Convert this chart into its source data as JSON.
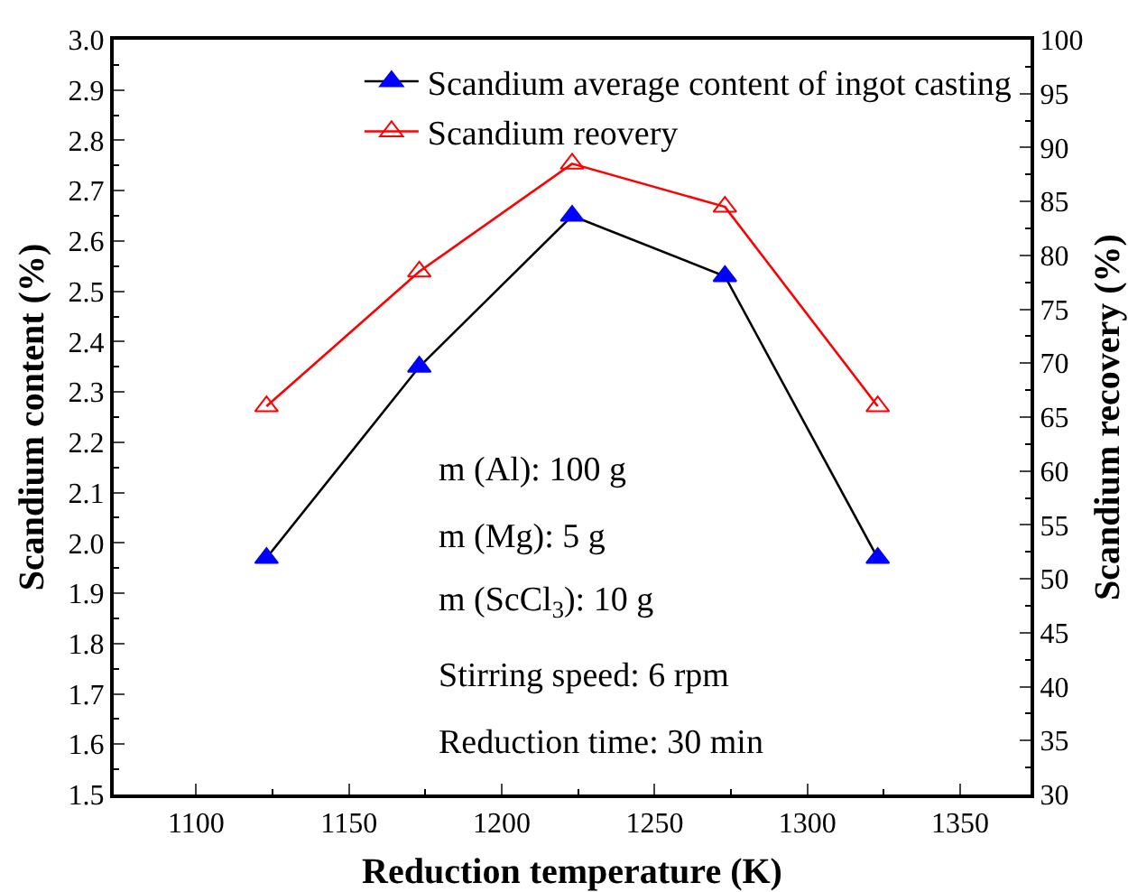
{
  "chart_data": {
    "type": "line",
    "xlabel": "Reduction temperature (K)",
    "ylabel": "Scandium content (%)",
    "y2label": "Scandium recovery (%)",
    "x": [
      1123,
      1173,
      1223,
      1273,
      1323
    ],
    "series": [
      {
        "name": "Scandium average content of ingot casting",
        "color": "#000000",
        "colors": [
          "#0000ff",
          "#0000ff",
          "#0000ff",
          "#0000ff",
          "#0000ff"
        ],
        "values": [
          1.97,
          2.35,
          2.65,
          2.53,
          1.97
        ]
      },
      {
        "name": "Scandium reovery",
        "color": "#ff0000",
        "axis": "y2",
        "values": [
          66,
          78.5,
          88.5,
          84.5,
          66
        ]
      }
    ],
    "xlim": [
      1073,
      1373
    ],
    "xticks": [
      1100,
      1150,
      1200,
      1250,
      1300,
      1350
    ],
    "ylim": [
      1.5,
      3.0
    ],
    "yticks": [
      {
        "value": 1.5,
        "label": "1.5"
      },
      {
        "value": 1.6,
        "label": "1.6"
      },
      {
        "value": 1.7,
        "label": "1.7"
      },
      {
        "value": 1.8,
        "label": "1.8"
      },
      {
        "value": 1.9,
        "label": "1.9"
      },
      {
        "value": 2.0,
        "label": "2.0"
      },
      {
        "value": 2.1,
        "label": "2.1"
      },
      {
        "value": 2.2,
        "label": "2.2"
      },
      {
        "value": 2.3,
        "label": "2.3"
      },
      {
        "value": 2.4,
        "label": "2.4"
      },
      {
        "value": 2.5,
        "label": "2.5"
      },
      {
        "value": 2.6,
        "label": "2.6"
      },
      {
        "value": 2.7,
        "label": "2.7"
      },
      {
        "value": 2.8,
        "label": "2.8"
      },
      {
        "value": 2.9,
        "label": "2.9"
      },
      {
        "value": 3.0,
        "label": "3.0"
      }
    ],
    "y2lim": [
      30,
      100
    ],
    "y2ticks": [
      30,
      35,
      40,
      45,
      50,
      55,
      60,
      65,
      70,
      75,
      80,
      85,
      90,
      95,
      100
    ],
    "marker": "triangle",
    "line_style": "solid",
    "grid": false,
    "legend": "top right",
    "annotations": [
      "m (Al): 100 g",
      "m (Mg): 5 g",
      "m (ScCl$_{3}$): 10 g",
      "Stirring speed: 6 rpm",
      "Reduction time: 30 min"
    ]
  }
}
